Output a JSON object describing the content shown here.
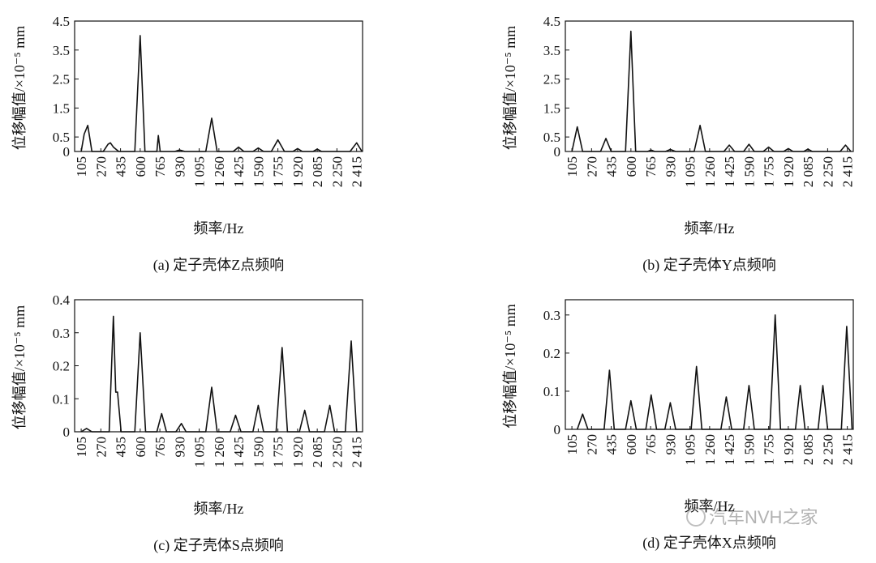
{
  "chart_data": [
    {
      "type": "line",
      "caption": "(a) 定子壳体Z点频响",
      "xlabel": "频率/Hz",
      "ylabel": "位移幅值/×10⁻⁵ mm",
      "color": "#111111",
      "x": [
        105,
        130,
        160,
        195,
        290,
        330,
        350,
        375,
        420,
        555,
        600,
        640,
        740,
        752,
        768,
        890,
        930,
        975,
        1150,
        1200,
        1245,
        1380,
        1425,
        1470,
        1545,
        1590,
        1635,
        1700,
        1755,
        1810,
        1880,
        1920,
        1960,
        2050,
        2085,
        2120,
        2360,
        2415,
        2460
      ],
      "values": [
        0,
        0.6,
        0.9,
        0,
        0,
        0.25,
        0.3,
        0.15,
        0,
        0,
        4.0,
        0,
        0,
        0.55,
        0,
        0,
        0.05,
        0,
        0,
        1.15,
        0,
        0,
        0.15,
        0,
        0,
        0.12,
        0,
        0,
        0.4,
        0,
        0,
        0.1,
        0,
        0,
        0.08,
        0,
        0,
        0.3,
        0
      ],
      "xlim": [
        50,
        2465
      ],
      "ylim": [
        0,
        4.5
      ],
      "xticks": [
        105,
        270,
        435,
        600,
        765,
        930,
        {
          "value": 1095,
          "label": "1 095"
        },
        {
          "value": 1260,
          "label": "1 260"
        },
        {
          "value": 1425,
          "label": "1 425"
        },
        {
          "value": 1590,
          "label": "1 590"
        },
        {
          "value": 1755,
          "label": "1 755"
        },
        {
          "value": 1920,
          "label": "1 920"
        },
        {
          "value": 2085,
          "label": "2 085"
        },
        {
          "value": 2250,
          "label": "2 250"
        },
        {
          "value": 2415,
          "label": "2 415"
        }
      ],
      "yticks": [
        0,
        0.5,
        1.5,
        2.5,
        3.5,
        4.5
      ]
    },
    {
      "type": "line",
      "caption": "(b) 定子壳体Y点频响",
      "xlabel": "频率/Hz",
      "ylabel": "位移幅值/×10⁻⁵ mm",
      "color": "#111111",
      "x": [
        105,
        150,
        195,
        345,
        390,
        435,
        555,
        600,
        640,
        740,
        770,
        800,
        890,
        930,
        975,
        1130,
        1180,
        1225,
        1380,
        1425,
        1470,
        1545,
        1590,
        1635,
        1710,
        1755,
        1800,
        1880,
        1920,
        1960,
        2050,
        2085,
        2120,
        2355,
        2400,
        2445
      ],
      "values": [
        0,
        0.85,
        0,
        0,
        0.45,
        0,
        0,
        4.15,
        0,
        0,
        0.05,
        0,
        0,
        0.07,
        0,
        0,
        0.9,
        0,
        0,
        0.22,
        0,
        0,
        0.25,
        0,
        0,
        0.15,
        0,
        0,
        0.1,
        0,
        0,
        0.08,
        0,
        0,
        0.22,
        0
      ],
      "xlim": [
        50,
        2465
      ],
      "ylim": [
        0,
        4.5
      ],
      "xticks": [
        105,
        270,
        435,
        600,
        765,
        930,
        {
          "value": 1095,
          "label": "1 095"
        },
        {
          "value": 1260,
          "label": "1 260"
        },
        {
          "value": 1425,
          "label": "1 425"
        },
        {
          "value": 1590,
          "label": "1 590"
        },
        {
          "value": 1755,
          "label": "1 755"
        },
        {
          "value": 1920,
          "label": "1 920"
        },
        {
          "value": 2085,
          "label": "2 085"
        },
        {
          "value": 2250,
          "label": "2 250"
        },
        {
          "value": 2415,
          "label": "2 415"
        }
      ],
      "yticks": [
        0,
        0.5,
        1.5,
        2.5,
        3.5,
        4.5
      ]
    },
    {
      "type": "line",
      "caption": "(c) 定子壳体S点频响",
      "xlabel": "频率/Hz",
      "ylabel": "位移幅值/×10⁻⁵ mm",
      "color": "#111111",
      "x": [
        105,
        150,
        195,
        340,
        375,
        395,
        410,
        440,
        555,
        600,
        645,
        740,
        780,
        820,
        900,
        945,
        985,
        1150,
        1200,
        1245,
        1355,
        1400,
        1445,
        1545,
        1590,
        1635,
        1740,
        1790,
        1835,
        1935,
        1980,
        2020,
        2145,
        2190,
        2230,
        2320,
        2370,
        2415
      ],
      "values": [
        0,
        0.01,
        0,
        0,
        0.35,
        0.12,
        0.12,
        0,
        0,
        0.3,
        0,
        0,
        0.055,
        0,
        0,
        0.025,
        0,
        0,
        0.135,
        0,
        0,
        0.05,
        0,
        0,
        0.08,
        0,
        0,
        0.255,
        0,
        0,
        0.065,
        0,
        0,
        0.08,
        0,
        0,
        0.275,
        0
      ],
      "xlim": [
        50,
        2465
      ],
      "ylim": [
        0,
        0.4
      ],
      "xticks": [
        105,
        270,
        435,
        600,
        765,
        930,
        {
          "value": 1095,
          "label": "1 095"
        },
        {
          "value": 1260,
          "label": "1 260"
        },
        {
          "value": 1425,
          "label": "1 425"
        },
        {
          "value": 1590,
          "label": "1 590"
        },
        {
          "value": 1755,
          "label": "1 755"
        },
        {
          "value": 1920,
          "label": "1 920"
        },
        {
          "value": 2085,
          "label": "2 085"
        },
        {
          "value": 2250,
          "label": "2 250"
        },
        {
          "value": 2415,
          "label": "2 415"
        }
      ],
      "yticks": [
        0,
        0.1,
        0.2,
        0.3,
        0.4
      ]
    },
    {
      "type": "line",
      "caption": "(d) 定子壳体X点频响",
      "xlabel": "频率/Hz",
      "ylabel": "位移幅值/×10⁻⁵ mm",
      "color": "#111111",
      "x": [
        150,
        195,
        240,
        375,
        420,
        460,
        555,
        600,
        645,
        725,
        770,
        815,
        885,
        930,
        975,
        1105,
        1150,
        1195,
        1355,
        1400,
        1445,
        1545,
        1590,
        1635,
        1765,
        1810,
        1855,
        1980,
        2020,
        2060,
        2170,
        2210,
        2250,
        2365,
        2410,
        2455
      ],
      "values": [
        0,
        0.04,
        0,
        0,
        0.155,
        0,
        0,
        0.075,
        0,
        0,
        0.09,
        0,
        0,
        0.07,
        0,
        0,
        0.165,
        0,
        0,
        0.085,
        0,
        0,
        0.115,
        0,
        0,
        0.3,
        0,
        0,
        0.115,
        0,
        0,
        0.115,
        0,
        0,
        0.27,
        0
      ],
      "xlim": [
        50,
        2465
      ],
      "ylim": [
        0,
        0.34
      ],
      "xticks": [
        105,
        270,
        435,
        600,
        765,
        930,
        {
          "value": 1095,
          "label": "1 095"
        },
        {
          "value": 1260,
          "label": "1 260"
        },
        {
          "value": 1425,
          "label": "1 425"
        },
        {
          "value": 1590,
          "label": "1 590"
        },
        {
          "value": 1755,
          "label": "1 755"
        },
        {
          "value": 1920,
          "label": "1 920"
        },
        {
          "value": 2085,
          "label": "2 085"
        },
        {
          "value": 2250,
          "label": "2 250"
        },
        {
          "value": 2415,
          "label": "2 415"
        }
      ],
      "yticks": [
        0,
        0.1,
        0.2,
        0.3
      ]
    }
  ],
  "watermark": "汽车NVH之家"
}
